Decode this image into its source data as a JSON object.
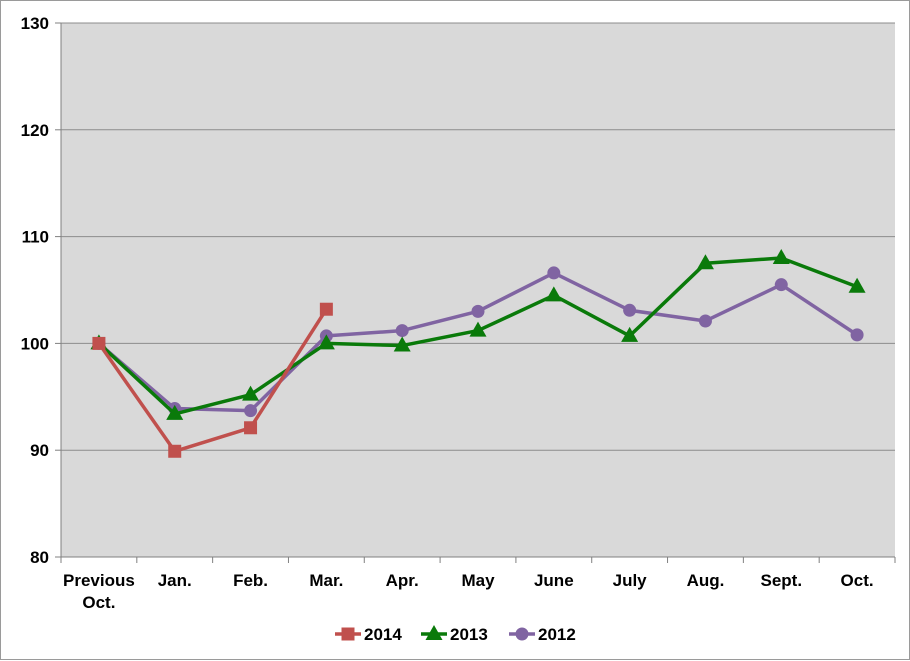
{
  "chart_data": {
    "type": "line",
    "title": "",
    "xlabel": "",
    "ylabel": "",
    "categories": [
      "Previous Oct.",
      "Jan.",
      "Feb.",
      "Mar.",
      "Apr.",
      "May",
      "June",
      "July",
      "Aug.",
      "Sept.",
      "Oct."
    ],
    "category_lines": [
      [
        "Previous",
        "Oct."
      ],
      [
        "Jan."
      ],
      [
        "Feb."
      ],
      [
        "Mar."
      ],
      [
        "Apr."
      ],
      [
        "May"
      ],
      [
        "June"
      ],
      [
        "July"
      ],
      [
        "Aug."
      ],
      [
        "Sept."
      ],
      [
        "Oct."
      ]
    ],
    "ylim": [
      80,
      130
    ],
    "yticks": [
      "80",
      "90",
      "100",
      "110",
      "120",
      "130"
    ],
    "grid": true,
    "legend_position": "bottom",
    "series": [
      {
        "name": "2014",
        "color": "#c0504d",
        "marker": "square",
        "values": [
          100,
          89.9,
          92.1,
          103.2,
          null,
          null,
          null,
          null,
          null,
          null,
          null
        ]
      },
      {
        "name": "2013",
        "color": "#0a7a0a",
        "marker": "triangle",
        "values": [
          100,
          93.4,
          95.2,
          100,
          99.8,
          101.2,
          104.5,
          100.7,
          107.5,
          108,
          105.3
        ]
      },
      {
        "name": "2012",
        "color": "#8064a2",
        "marker": "circle",
        "values": [
          100,
          93.9,
          93.7,
          100.7,
          101.2,
          103,
          106.6,
          103.1,
          102.1,
          105.5,
          100.8
        ]
      }
    ]
  }
}
